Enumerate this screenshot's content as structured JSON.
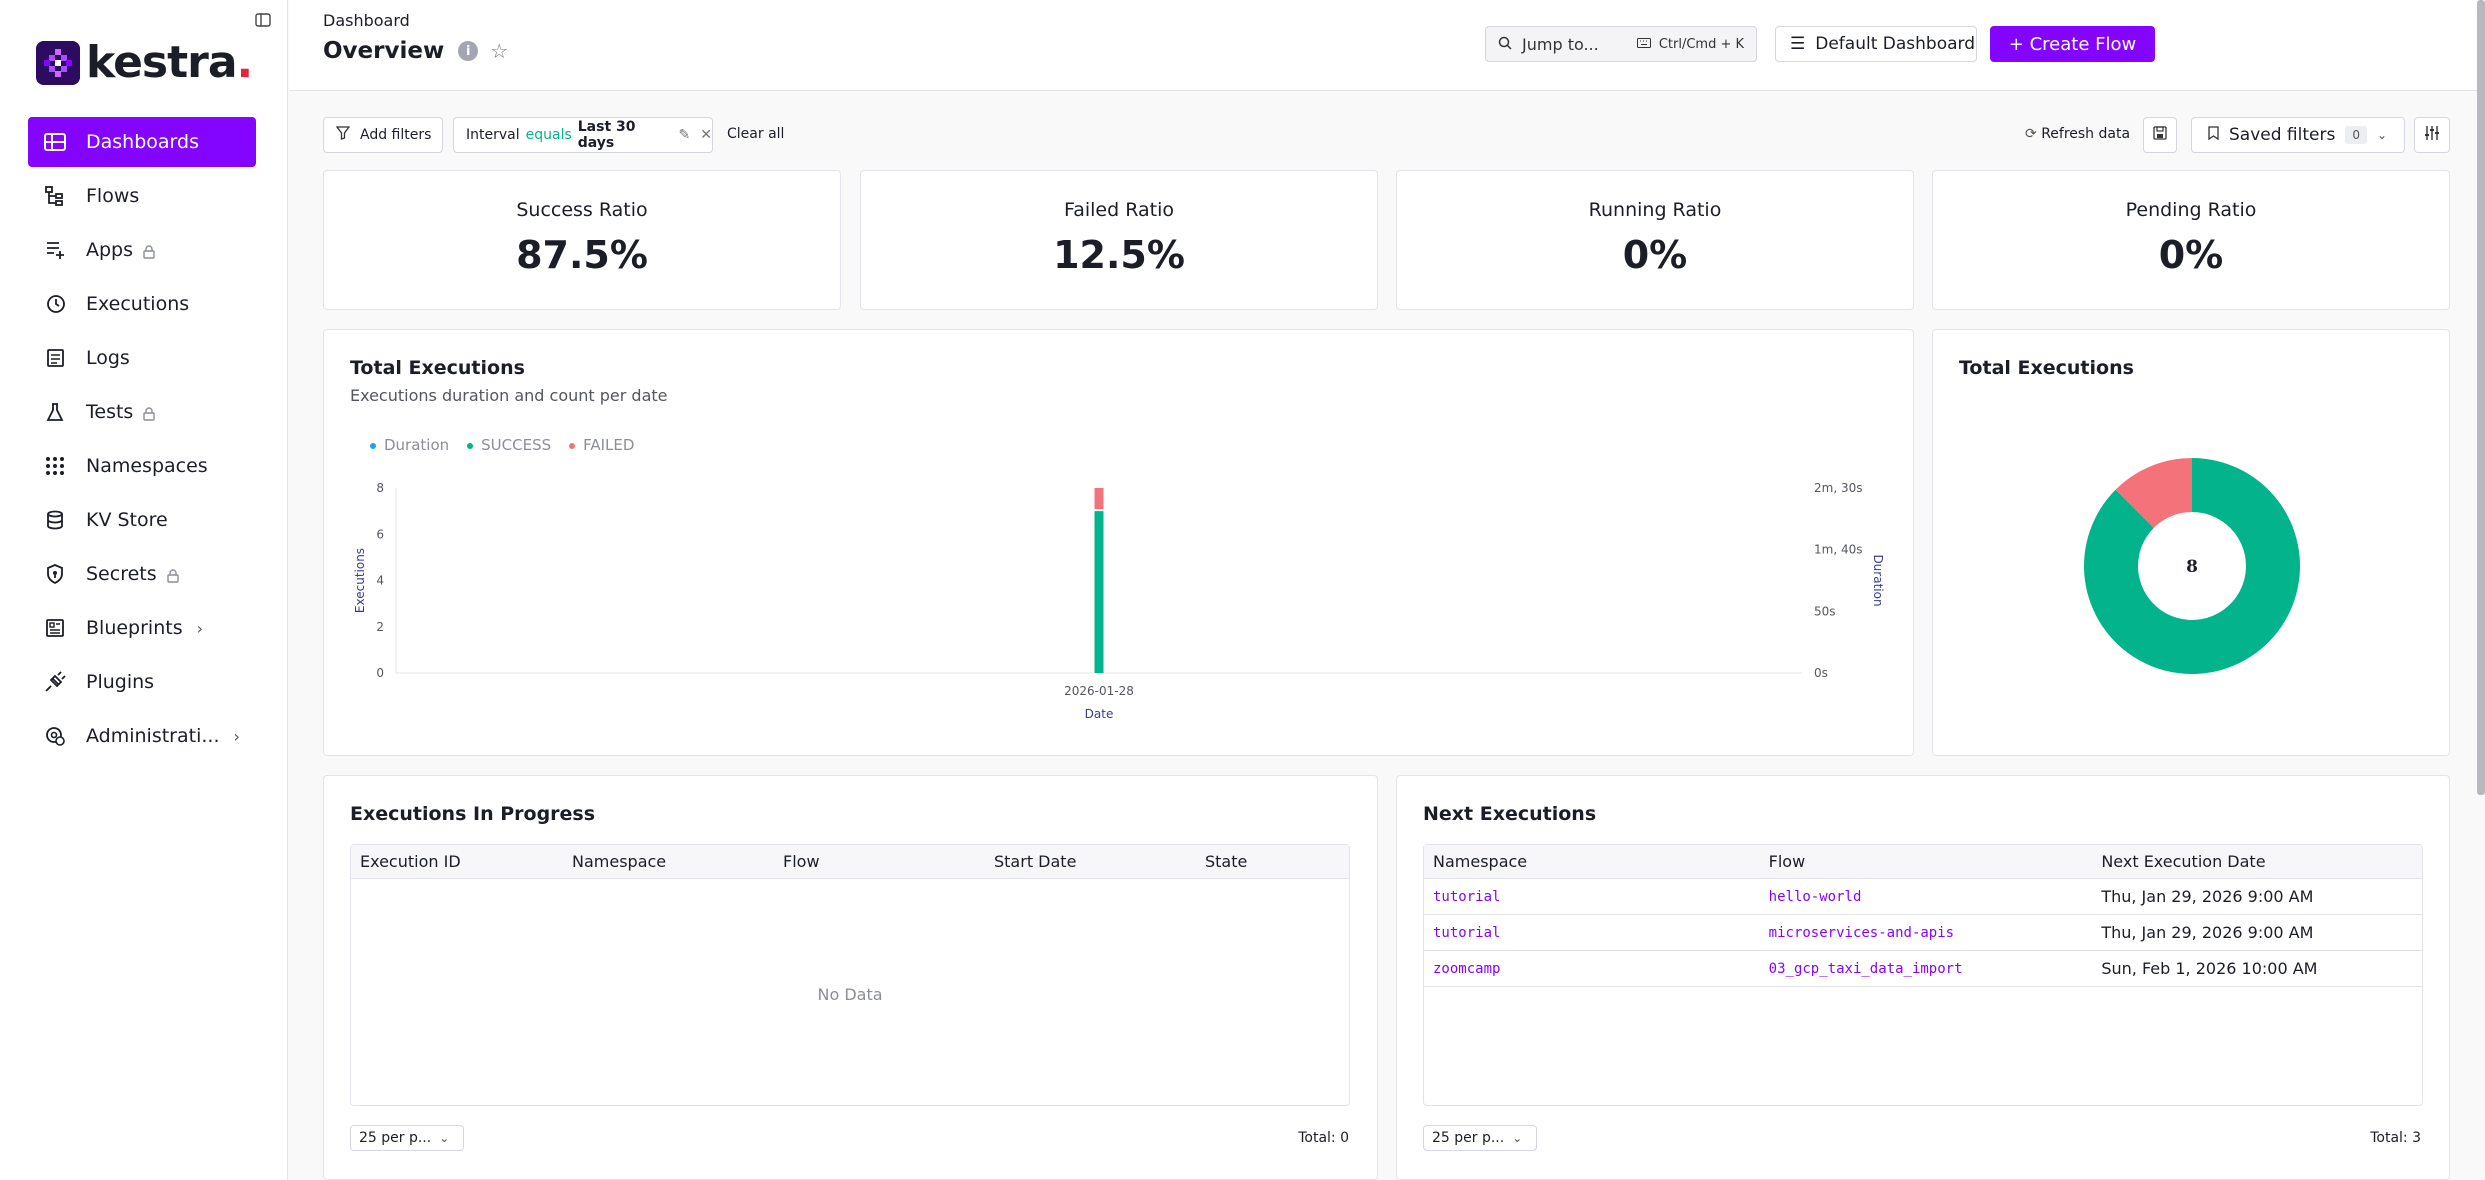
{
  "app": {
    "brand": "kestra",
    "brand_dot": ".",
    "accent": "#8405ff",
    "success_color": "#03b38b",
    "failed_color": "#f4737a",
    "duration_color": "#1da1f2"
  },
  "sidebar": {
    "items": [
      {
        "label": "Dashboards",
        "icon": "dashboard-icon",
        "active": true
      },
      {
        "label": "Flows",
        "icon": "flows-icon"
      },
      {
        "label": "Apps",
        "icon": "apps-icon",
        "locked": true
      },
      {
        "label": "Executions",
        "icon": "executions-icon"
      },
      {
        "label": "Logs",
        "icon": "logs-icon"
      },
      {
        "label": "Tests",
        "icon": "tests-icon",
        "locked": true
      },
      {
        "label": "Namespaces",
        "icon": "namespaces-icon"
      },
      {
        "label": "KV Store",
        "icon": "kv-store-icon"
      },
      {
        "label": "Secrets",
        "icon": "secrets-icon",
        "locked": true
      },
      {
        "label": "Blueprints",
        "icon": "blueprints-icon",
        "expandable": true
      },
      {
        "label": "Plugins",
        "icon": "plugins-icon"
      },
      {
        "label": "Administrati...",
        "icon": "administration-icon",
        "expandable": true
      }
    ]
  },
  "header": {
    "breadcrumb": "Dashboard",
    "title": "Overview",
    "jump_label": "Jump to...",
    "jump_shortcut": "Ctrl/Cmd + K",
    "dashboard_select": "Default Dashboard",
    "create_flow": "+ Create Flow"
  },
  "filters": {
    "add_filters": "Add filters",
    "interval_label": "Interval",
    "interval_op": "equals",
    "interval_value": "Last 30 days",
    "clear_all": "Clear all",
    "refresh": "Refresh data",
    "saved_filters": "Saved filters",
    "saved_count": "0"
  },
  "kpis": [
    {
      "label": "Success Ratio",
      "value": "87.5%"
    },
    {
      "label": "Failed Ratio",
      "value": "12.5%"
    },
    {
      "label": "Running Ratio",
      "value": "0%"
    },
    {
      "label": "Pending Ratio",
      "value": "0%"
    }
  ],
  "total_executions_chart": {
    "title": "Total Executions",
    "subtitle": "Executions duration and count per date",
    "legend": [
      "Duration",
      "SUCCESS",
      "FAILED"
    ]
  },
  "chart_data": [
    {
      "type": "bar",
      "title": "Total Executions",
      "categories": [
        "2026-01-28"
      ],
      "series": [
        {
          "name": "SUCCESS",
          "values": [
            7
          ]
        },
        {
          "name": "FAILED",
          "values": [
            1
          ]
        },
        {
          "name": "Duration",
          "values": [
            0
          ]
        }
      ],
      "xlabel": "Date",
      "ylabel": "Executions",
      "y2label": "Duration",
      "ylim": [
        0,
        8
      ],
      "yticks": [
        "0",
        "2",
        "4",
        "6",
        "8"
      ],
      "y2ticks": [
        "0s",
        "50s",
        "1m, 40s",
        "2m, 30s"
      ]
    },
    {
      "type": "pie",
      "title": "Total Executions",
      "center_label": "8",
      "labels": [
        "SUCCESS",
        "FAILED"
      ],
      "values": [
        7,
        1
      ]
    }
  ],
  "in_progress": {
    "title": "Executions In Progress",
    "columns": [
      "Execution ID",
      "Namespace",
      "Flow",
      "Start Date",
      "State"
    ],
    "empty": "No Data",
    "pager": "25 per p...",
    "total": "Total: 0"
  },
  "next_executions": {
    "title": "Next Executions",
    "columns": [
      "Namespace",
      "Flow",
      "Next Execution Date"
    ],
    "rows": [
      {
        "namespace": "tutorial",
        "flow": "hello-world",
        "date": "Thu, Jan 29, 2026 9:00 AM"
      },
      {
        "namespace": "tutorial",
        "flow": "microservices-and-apis",
        "date": "Thu, Jan 29, 2026 9:00 AM"
      },
      {
        "namespace": "zoomcamp",
        "flow": "03_gcp_taxi_data_import",
        "date": "Sun, Feb 1, 2026 10:00 AM"
      }
    ],
    "pager": "25 per p...",
    "total": "Total: 3"
  }
}
